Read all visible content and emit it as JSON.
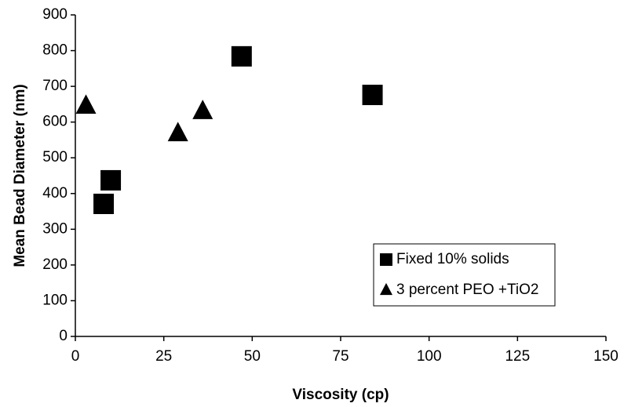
{
  "chart_data": {
    "type": "scatter",
    "xlabel": "Viscosity (cp)",
    "ylabel": "Mean Bead Diameter (nm)",
    "xlim": [
      0,
      150
    ],
    "xticks": [
      0,
      25,
      50,
      75,
      100,
      125,
      150
    ],
    "ylim": [
      0,
      900
    ],
    "yticks": [
      0,
      100,
      200,
      300,
      400,
      500,
      600,
      700,
      800,
      900
    ],
    "grid": false,
    "legend": "lower right",
    "series": [
      {
        "name": "Fixed 10% solids",
        "color": "#000000",
        "marker": "square",
        "x": [
          8,
          10,
          47,
          84
        ],
        "values": [
          371,
          437,
          784,
          676
        ]
      },
      {
        "name": "3 percent PEO +TiO2",
        "color": "#000000",
        "marker": "triangle",
        "x": [
          3,
          29,
          36
        ],
        "values": [
          645,
          568,
          630
        ]
      }
    ]
  }
}
